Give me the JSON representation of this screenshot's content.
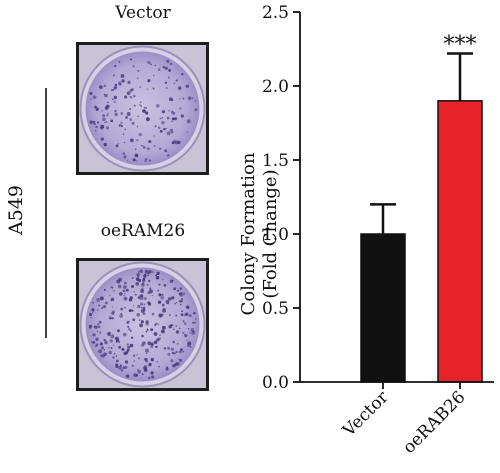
{
  "left_panel": {
    "cell_line": "A549",
    "top_image_label": "Vector",
    "bottom_image_label": "oeRAM26"
  },
  "chart_data": {
    "type": "bar",
    "categories": [
      "Vector",
      "oeRAB26"
    ],
    "values": [
      1.0,
      1.9
    ],
    "error": [
      0.2,
      0.32
    ],
    "colors": [
      "#111111",
      "#e8242b"
    ],
    "ylabel_line1": "Colony Formation",
    "ylabel_line2": "(Fold Change)",
    "ylim": [
      0,
      2.5
    ],
    "yticks": [
      "0.0",
      "0.5",
      "1.0",
      "1.5",
      "2.0",
      "2.5"
    ],
    "significance": [
      {
        "category": "oeRAB26",
        "label": "***"
      }
    ]
  }
}
